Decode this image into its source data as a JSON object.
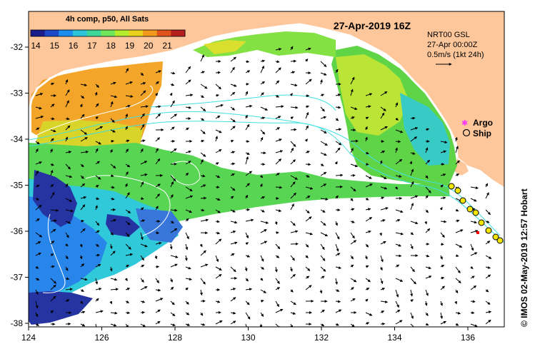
{
  "map": {
    "date_title": "27-Apr-2019 16Z",
    "colorbar": {
      "title": "4h comp, p50, All Sats",
      "ticks": [
        "14",
        "15",
        "16",
        "17",
        "18",
        "19",
        "20",
        "21"
      ],
      "colors": [
        "#1a1e8c",
        "#1b49c8",
        "#1d8ef0",
        "#2cc4d8",
        "#3bd79a",
        "#6ee65a",
        "#b5ec2c",
        "#e9d11e",
        "#f39a1c",
        "#e0521c",
        "#b41e1e"
      ]
    },
    "info": {
      "line1": "NRT00 GSL",
      "line2": "27-Apr 00:00Z",
      "line3": "0.5m/s (1kt 24h)"
    },
    "legend": {
      "argo": "Argo",
      "ship": "Ship",
      "argo_color": "#ff33ff"
    },
    "credit": "© IMOS 02-May-2019 12:57 Hobart",
    "axes": {
      "x_ticks": [
        "124",
        "126",
        "128",
        "130",
        "132",
        "134",
        "136"
      ],
      "y_ticks": [
        "-32",
        "-33",
        "-34",
        "-35",
        "-36",
        "-37",
        "-38"
      ]
    },
    "colors": {
      "land": "#fdc79b",
      "contour": "#40e0e0",
      "arrow": "#000000",
      "ship_fill": "#f2e600"
    }
  }
}
